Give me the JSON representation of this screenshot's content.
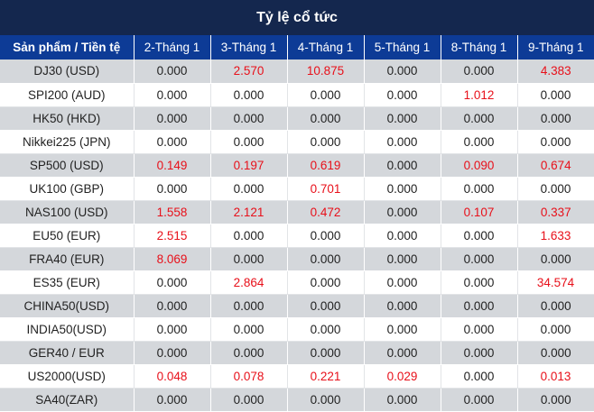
{
  "title": "Tỷ lệ cổ tức",
  "headers": [
    "Sản phẩm / Tiền tệ",
    "2-Tháng 1",
    "3-Tháng 1",
    "4-Tháng 1",
    "5-Tháng 1",
    "8-Tháng 1",
    "9-Tháng 1"
  ],
  "colors": {
    "header_bg": "#0d3b96",
    "title_bg": "#14274e",
    "positive": "#e8101a",
    "zero": "#222222",
    "stripe": "#d4d7db"
  },
  "rows": [
    {
      "product": "DJ30 (USD)",
      "values": [
        "0.000",
        "2.570",
        "10.875",
        "0.000",
        "0.000",
        "4.383"
      ]
    },
    {
      "product": "SPI200 (AUD)",
      "values": [
        "0.000",
        "0.000",
        "0.000",
        "0.000",
        "1.012",
        "0.000"
      ]
    },
    {
      "product": "HK50 (HKD)",
      "values": [
        "0.000",
        "0.000",
        "0.000",
        "0.000",
        "0.000",
        "0.000"
      ]
    },
    {
      "product": "Nikkei225 (JPN)",
      "values": [
        "0.000",
        "0.000",
        "0.000",
        "0.000",
        "0.000",
        "0.000"
      ]
    },
    {
      "product": "SP500 (USD)",
      "values": [
        "0.149",
        "0.197",
        "0.619",
        "0.000",
        "0.090",
        "0.674"
      ]
    },
    {
      "product": "UK100 (GBP)",
      "values": [
        "0.000",
        "0.000",
        "0.701",
        "0.000",
        "0.000",
        "0.000"
      ]
    },
    {
      "product": "NAS100 (USD)",
      "values": [
        "1.558",
        "2.121",
        "0.472",
        "0.000",
        "0.107",
        "0.337"
      ]
    },
    {
      "product": "EU50 (EUR)",
      "values": [
        "2.515",
        "0.000",
        "0.000",
        "0.000",
        "0.000",
        "1.633"
      ]
    },
    {
      "product": "FRA40 (EUR)",
      "values": [
        "8.069",
        "0.000",
        "0.000",
        "0.000",
        "0.000",
        "0.000"
      ]
    },
    {
      "product": "ES35 (EUR)",
      "values": [
        "0.000",
        "2.864",
        "0.000",
        "0.000",
        "0.000",
        "34.574"
      ]
    },
    {
      "product": "CHINA50(USD)",
      "values": [
        "0.000",
        "0.000",
        "0.000",
        "0.000",
        "0.000",
        "0.000"
      ]
    },
    {
      "product": "INDIA50(USD)",
      "values": [
        "0.000",
        "0.000",
        "0.000",
        "0.000",
        "0.000",
        "0.000"
      ]
    },
    {
      "product": "GER40 / EUR",
      "values": [
        "0.000",
        "0.000",
        "0.000",
        "0.000",
        "0.000",
        "0.000"
      ]
    },
    {
      "product": "US2000(USD)",
      "values": [
        "0.048",
        "0.078",
        "0.221",
        "0.029",
        "0.000",
        "0.013"
      ]
    },
    {
      "product": "SA40(ZAR)",
      "values": [
        "0.000",
        "0.000",
        "0.000",
        "0.000",
        "0.000",
        "0.000"
      ]
    }
  ]
}
